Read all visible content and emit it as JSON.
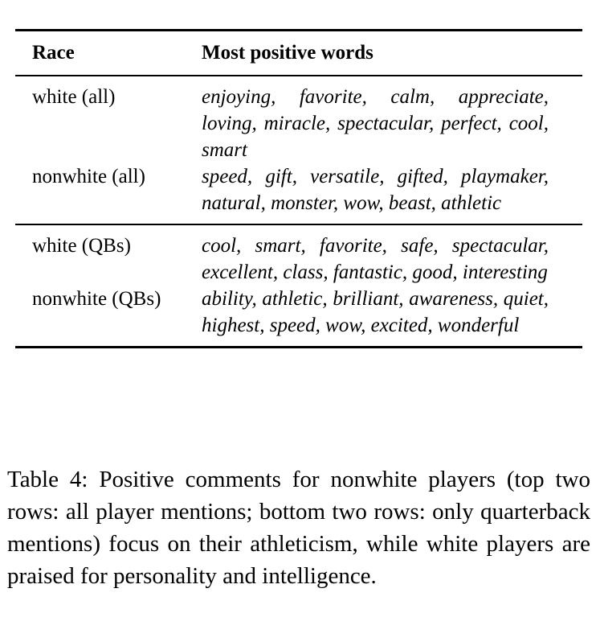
{
  "table": {
    "headers": {
      "race": "Race",
      "words": "Most positive words"
    },
    "groups": [
      {
        "rows": [
          {
            "race": "white (all)",
            "words": "enjoying, favorite, calm, appreciate, loving, miracle, spectacular, perfect, cool, smart"
          },
          {
            "race": "nonwhite (all)",
            "words": "speed, gift, versatile, gifted, play­maker, natural, monster, wow, beast, athletic"
          }
        ]
      },
      {
        "rows": [
          {
            "race": "white (QBs)",
            "words": "cool, smart, favorite, safe, spectacu­lar, excellent, class, fantastic, good, interesting"
          },
          {
            "race": "nonwhite (QBs)",
            "words": "ability, athletic, brilliant, aware­ness, quiet, highest, speed, wow, ex­cited, wonderful"
          }
        ]
      }
    ]
  },
  "caption": "Table 4: Positive comments for nonwhite players (top two rows: all player mentions; bottom two rows: only quarterback mentions) focus on their athleticism, while white players are praised for personality and intelli­gence."
}
